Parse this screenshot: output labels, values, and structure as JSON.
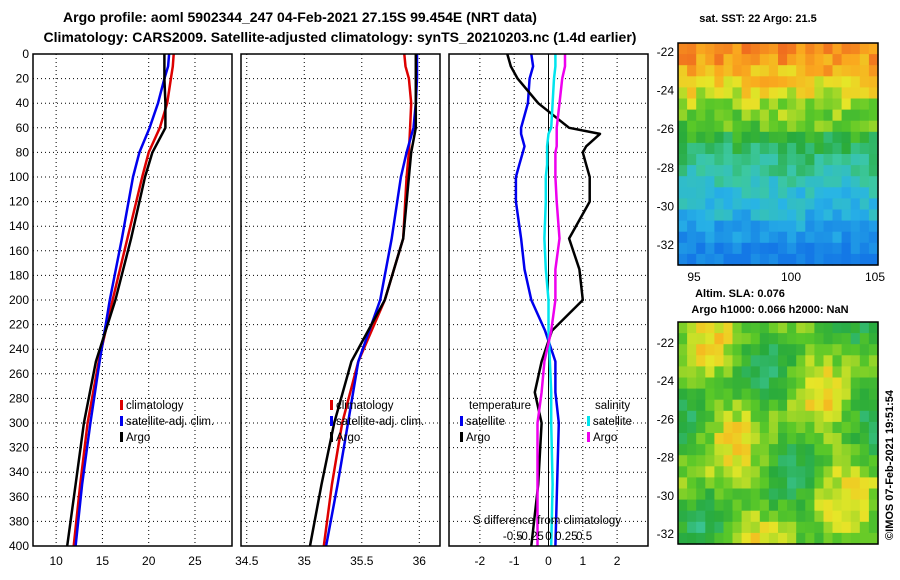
{
  "header": {
    "title_line1": "Argo profile: aoml 5902344_247 04-Feb-2021 27.15S 99.454E (NRT data)",
    "title_line2": "Climatology: CARS2009. Satellite-adjusted climatology: synTS_20210203.nc (1.4d earlier)"
  },
  "colors": {
    "climatology": "#dd0000",
    "satellite": "#0000ee",
    "argo": "#000000",
    "sal_satellite": "#00e5ee",
    "sal_argo": "#ee00ee"
  },
  "sst_map": {
    "label": "sat. SST: 22 Argo: 21.5",
    "x_ticks": [
      "95",
      "100",
      "105"
    ],
    "y_ticks": [
      "-22",
      "-24",
      "-26",
      "-28",
      "-30",
      "-32"
    ]
  },
  "sla_map": {
    "label1": "Altim. SLA: 0.076",
    "label2": "Argo h1000: 0.066 h2000: NaN",
    "y_ticks": [
      "-22",
      "-24",
      "-26",
      "-28",
      "-30",
      "-32"
    ]
  },
  "credit": "©IMOS 07-Feb-2021 19:51:54",
  "chart_data": [
    {
      "type": "line",
      "name": "temperature",
      "xlim": [
        7.5,
        29
      ],
      "ylim": [
        400,
        0
      ],
      "x_ticks": [
        "10",
        "15",
        "20",
        "25"
      ],
      "depth_ticks": [
        "0",
        "20",
        "40",
        "60",
        "80",
        "100",
        "120",
        "140",
        "160",
        "180",
        "200",
        "220",
        "240",
        "260",
        "280",
        "300",
        "320",
        "340",
        "360",
        "380",
        "400"
      ],
      "legend": [
        "climatology",
        "satellite-adj. clim.",
        "Argo"
      ],
      "depth": [
        0,
        10,
        20,
        40,
        60,
        80,
        100,
        150,
        200,
        250,
        300,
        350,
        400
      ],
      "series": [
        {
          "name": "climatology",
          "values": [
            22.7,
            22.6,
            22.4,
            22.0,
            21.2,
            20.0,
            19.3,
            17.7,
            16.1,
            14.6,
            13.4,
            12.6,
            11.9
          ]
        },
        {
          "name": "satellite-adj. clim.",
          "values": [
            22.2,
            22.1,
            21.7,
            21.0,
            20.1,
            19.0,
            18.3,
            17.1,
            15.8,
            14.7,
            13.7,
            12.8,
            12.1
          ]
        },
        {
          "name": "Argo",
          "values": [
            21.7,
            21.7,
            21.7,
            21.8,
            21.8,
            20.4,
            19.6,
            18.1,
            16.4,
            14.3,
            13.0,
            12.1,
            11.2
          ]
        }
      ]
    },
    {
      "type": "line",
      "name": "salinity",
      "xlim": [
        34.45,
        36.18
      ],
      "ylim": [
        400,
        0
      ],
      "x_ticks": [
        "34.5",
        "35",
        "35.5",
        "36"
      ],
      "legend": [
        "climatology",
        "satellite-adj. clim.",
        "Argo"
      ],
      "depth": [
        0,
        10,
        20,
        40,
        60,
        80,
        100,
        150,
        200,
        250,
        300,
        350,
        400
      ],
      "series": [
        {
          "name": "climatology",
          "values": [
            35.87,
            35.88,
            35.91,
            35.93,
            35.92,
            35.91,
            35.89,
            35.86,
            35.7,
            35.47,
            35.33,
            35.24,
            35.17
          ]
        },
        {
          "name": "satellite-adj. clim.",
          "values": [
            35.98,
            35.98,
            35.98,
            35.97,
            35.95,
            35.89,
            35.84,
            35.76,
            35.66,
            35.47,
            35.38,
            35.29,
            35.19
          ]
        },
        {
          "name": "Argo",
          "values": [
            35.97,
            35.97,
            35.97,
            35.97,
            35.97,
            35.93,
            35.91,
            35.86,
            35.7,
            35.41,
            35.26,
            35.15,
            35.05
          ]
        }
      ]
    },
    {
      "type": "line",
      "name": "difference-from-climatology",
      "xlim": [
        -2.9,
        2.9
      ],
      "ylim": [
        400,
        0
      ],
      "x_ticks": [
        "-2",
        "-1",
        "0",
        "1",
        "2"
      ],
      "sal_ticks": [
        "-0.5",
        "-0.25",
        "0",
        "0.25",
        "0.5"
      ],
      "sal_axis_label": "S difference from climatology",
      "legend_temperature": {
        "title": "temperature",
        "items": [
          "satellite",
          "Argo"
        ]
      },
      "legend_salinity": {
        "title": "salinity",
        "items": [
          "satellite",
          "Argo"
        ]
      },
      "depth": [
        0,
        10,
        20,
        40,
        60,
        65,
        75,
        80,
        90,
        100,
        120,
        150,
        175,
        200,
        225,
        250,
        275,
        300,
        350,
        400
      ],
      "series": [
        {
          "name": "temperature satellite",
          "values": [
            -0.5,
            -0.45,
            -0.55,
            -0.6,
            -0.8,
            -0.8,
            -0.7,
            -0.75,
            -0.85,
            -0.95,
            -0.95,
            -0.8,
            -0.7,
            -0.5,
            -0.1,
            0.2,
            0.2,
            0.3,
            0.25,
            0.2
          ]
        },
        {
          "name": "temperature Argo",
          "values": [
            -1.2,
            -1.1,
            -0.9,
            -0.3,
            0.6,
            1.5,
            1.1,
            1.0,
            1.1,
            1.2,
            1.2,
            0.6,
            0.9,
            1.0,
            0.1,
            -0.2,
            -0.4,
            -0.2,
            -0.3,
            -0.5
          ]
        },
        {
          "name": "salinity satellite",
          "values": [
            0.05,
            0.05,
            0.04,
            0.03,
            0.02,
            0.0,
            -0.01,
            -0.01,
            -0.01,
            -0.02,
            -0.02,
            -0.03,
            -0.02,
            0.0,
            0.0,
            0.01,
            0.02,
            0.02,
            0.03,
            0.02
          ]
        },
        {
          "name": "salinity Argo",
          "values": [
            0.12,
            0.12,
            0.1,
            0.08,
            0.06,
            0.06,
            0.06,
            0.05,
            0.05,
            0.05,
            0.06,
            0.08,
            0.05,
            0.05,
            0.02,
            -0.03,
            -0.05,
            -0.08,
            -0.08,
            -0.08
          ]
        }
      ]
    }
  ]
}
